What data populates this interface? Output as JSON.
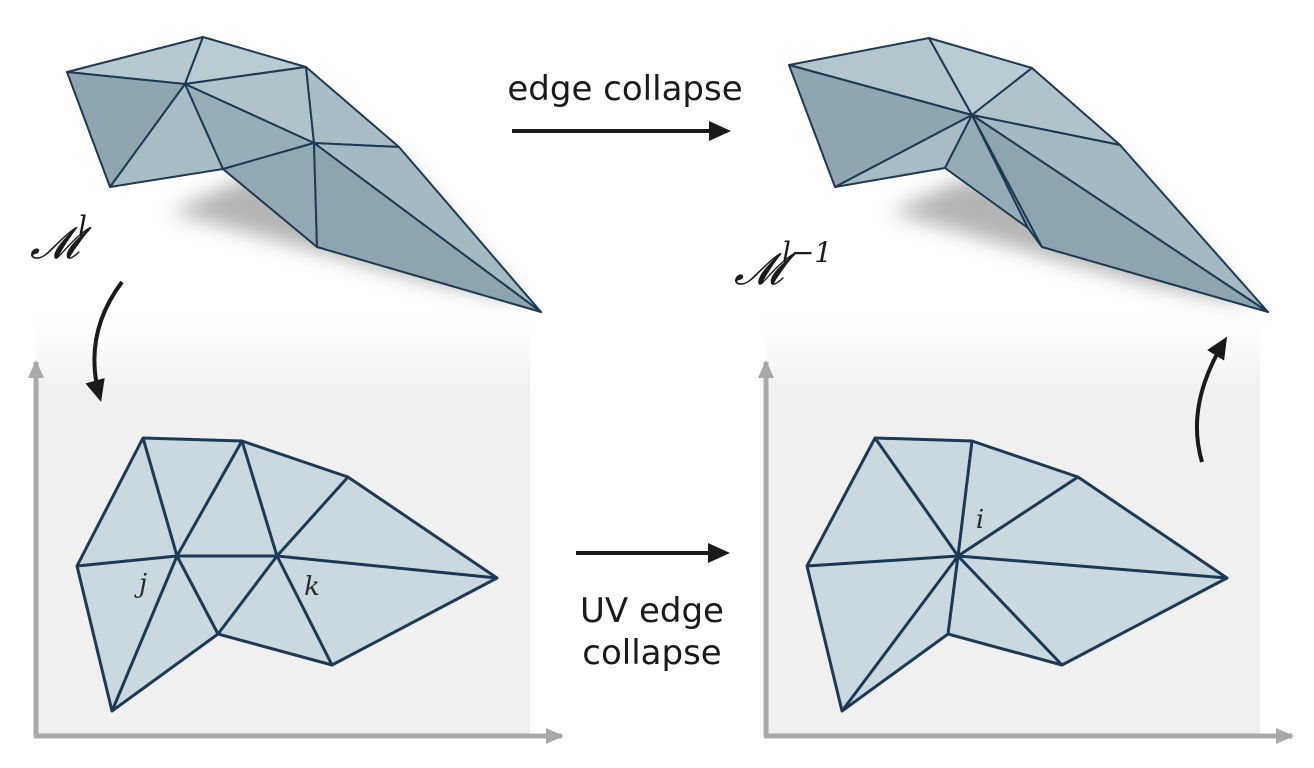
{
  "labels": {
    "top_arrow": "edge collapse",
    "bottom_arrow_line1": "UV edge",
    "bottom_arrow_line2": "collapse",
    "mesh_left_symbol": "𝓜",
    "mesh_left_sup": "l",
    "mesh_right_symbol": "𝓜",
    "mesh_right_sup": "l−1",
    "vertex_j": "j",
    "vertex_k": "k",
    "vertex_i": "i"
  },
  "colors": {
    "mesh_light": "#c3d3da",
    "mesh_dark": "#8fa6b0",
    "mesh_edge": "#1d3a55",
    "uv_fill": "#cad9df",
    "panel_bg": "#f0f0f0",
    "axis": "#a9a9a9",
    "shadow": "#9c9c9c",
    "arrow": "#1a1a1a"
  }
}
